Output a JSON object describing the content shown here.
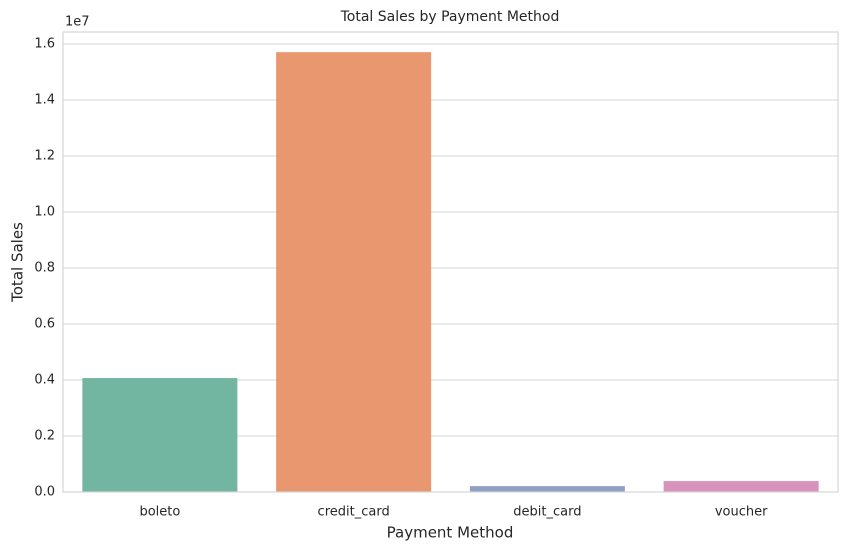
{
  "chart_data": {
    "type": "bar",
    "title": "Total Sales by Payment Method",
    "x_label": "Payment Method",
    "y_label": "Total Sales",
    "y_offset_label": "1e7",
    "categories": [
      "boleto",
      "credit_card",
      "debit_card",
      "voucher"
    ],
    "values": [
      4070000,
      15710000,
      210000,
      390000
    ],
    "colors": [
      "#72b5a0",
      "#e8976f",
      "#8fa0c5",
      "#d893bc"
    ],
    "ylim": [
      0,
      16430000
    ],
    "yticks": [
      {
        "value": 0,
        "label": "0.0"
      },
      {
        "value": 2000000,
        "label": "0.2"
      },
      {
        "value": 4000000,
        "label": "0.4"
      },
      {
        "value": 6000000,
        "label": "0.6"
      },
      {
        "value": 8000000,
        "label": "0.8"
      },
      {
        "value": 10000000,
        "label": "1.0"
      },
      {
        "value": 12000000,
        "label": "1.2"
      },
      {
        "value": 14000000,
        "label": "1.4"
      },
      {
        "value": 16000000,
        "label": "1.6"
      }
    ],
    "grid": true
  }
}
